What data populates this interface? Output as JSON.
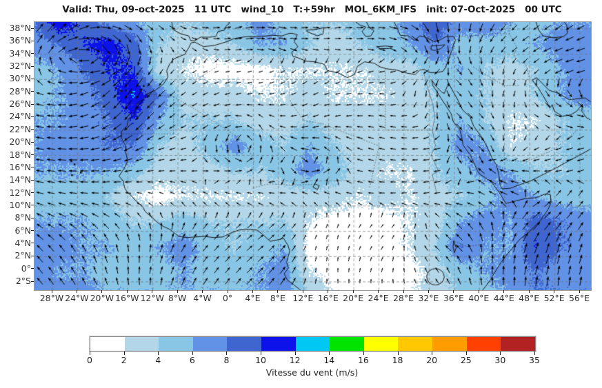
{
  "title": "Valid: Thu, 09-oct-2025   11 UTC   wind_10   T:+59hr   MOL_6KM_IFS   init: 07-Oct-2025   00 UTC",
  "axes": {
    "lat_labels": [
      "38°N",
      "36°N",
      "34°N",
      "32°N",
      "30°N",
      "28°N",
      "26°N",
      "24°N",
      "22°N",
      "20°N",
      "18°N",
      "16°N",
      "14°N",
      "12°N",
      "10°N",
      "8°N",
      "6°N",
      "4°N",
      "2°N",
      "0°",
      "2°S"
    ],
    "lon_labels": [
      "28°W",
      "24°W",
      "20°W",
      "16°W",
      "12°W",
      "8°W",
      "4°W",
      "0°",
      "4°E",
      "8°E",
      "12°E",
      "16°E",
      "20°E",
      "24°E",
      "28°E",
      "32°E",
      "36°E",
      "40°E",
      "44°E",
      "48°E",
      "52°E",
      "56°E"
    ]
  },
  "colorbar": {
    "label": "Vitesse du vent (m/s)",
    "ticks": [
      "0",
      "2",
      "4",
      "6",
      "8",
      "10",
      "12",
      "14",
      "16",
      "18",
      "20",
      "25",
      "30",
      "35"
    ],
    "colors": [
      "#ffffff",
      "#b3d7e8",
      "#89c6e6",
      "#6292e6",
      "#3f66d0",
      "#0d12ea",
      "#00c8f5",
      "#00e400",
      "#ffff00",
      "#ffc800",
      "#ff9c00",
      "#ff4000",
      "#b22222"
    ]
  },
  "chart_data": {
    "type": "heatmap",
    "subtype": "filled-contour wind speed field with quiver arrows over Africa",
    "variable": "wind_10",
    "model": "MOL_6KM_IFS",
    "valid": "Thu, 09-oct-2025 11 UTC",
    "lead": "T:+59hr",
    "init": "07-Oct-2025 00 UTC",
    "legend_label": "Vitesse du vent (m/s)",
    "levels": [
      0,
      2,
      4,
      6,
      8,
      10,
      12,
      14,
      16,
      18,
      20,
      25,
      30,
      35
    ],
    "lon_range": [
      -30.85,
      57.76
    ],
    "lat_range": [
      -3.31,
      39.09
    ],
    "grid_lons": [
      -31,
      -27,
      -23,
      -19,
      -15,
      -11,
      -7,
      -3,
      1,
      5,
      9,
      13,
      17,
      21,
      25,
      29,
      33,
      37,
      41,
      45,
      49,
      53,
      57
    ],
    "grid_lats": [
      39.5,
      35.5,
      31.5,
      27.5,
      23.5,
      19.5,
      15.5,
      11.5,
      7.5,
      3.5,
      -0.5,
      -4.5
    ],
    "speed_grid": [
      [
        8,
        12,
        9,
        7,
        6,
        5,
        4,
        5,
        5,
        7,
        5,
        4,
        4,
        5,
        5,
        7,
        10,
        7,
        8,
        6,
        5,
        6,
        6
      ],
      [
        7,
        8,
        10,
        11,
        9,
        4,
        3,
        3,
        4,
        6,
        6,
        4,
        3,
        4,
        5,
        6,
        8,
        5,
        5,
        5,
        6,
        7,
        7
      ],
      [
        5,
        6,
        8,
        10,
        10,
        3,
        2,
        1,
        1,
        1,
        2,
        2,
        2,
        2,
        3,
        3,
        5,
        6,
        4,
        3,
        4,
        6,
        7
      ],
      [
        5,
        6,
        7,
        9,
        12,
        8,
        3,
        3,
        3,
        2,
        2,
        3,
        2,
        2,
        2,
        3,
        4,
        5,
        4,
        3,
        4,
        6,
        7
      ],
      [
        6,
        6,
        7,
        8,
        10,
        6,
        4,
        4,
        4,
        3,
        3,
        4,
        3,
        3,
        3,
        3,
        4,
        6,
        4,
        2,
        2,
        4,
        5
      ],
      [
        6,
        7,
        7,
        8,
        8,
        4,
        3,
        5,
        7,
        5,
        4,
        6,
        4,
        3,
        3,
        3,
        4,
        7,
        6,
        2,
        3,
        4,
        5
      ],
      [
        6,
        6,
        6,
        6,
        5,
        3,
        3,
        3,
        4,
        4,
        5,
        7,
        5,
        3,
        2,
        2,
        4,
        5,
        7,
        6,
        4,
        4,
        5
      ],
      [
        5,
        5,
        5,
        4,
        2,
        1,
        2,
        2,
        2,
        2,
        3,
        3,
        3,
        2,
        3,
        2,
        3,
        4,
        5,
        7,
        6,
        5,
        5
      ],
      [
        6,
        6,
        6,
        5,
        4,
        4,
        5,
        4,
        4,
        4,
        4,
        2,
        1,
        1,
        1,
        2,
        3,
        6,
        7,
        6,
        9,
        8,
        7
      ],
      [
        7,
        7,
        6,
        6,
        5,
        6,
        7,
        5,
        4,
        5,
        6,
        1,
        1,
        1,
        1,
        2,
        4,
        8,
        6,
        6,
        10,
        8,
        7
      ],
      [
        7,
        6,
        6,
        5,
        5,
        5,
        6,
        5,
        5,
        6,
        7,
        2,
        1,
        1,
        1,
        1,
        3,
        5,
        6,
        7,
        8,
        7,
        7
      ],
      [
        8,
        7,
        7,
        6,
        6,
        6,
        6,
        6,
        6,
        6,
        7,
        4,
        2,
        1,
        1,
        2,
        3,
        4,
        5,
        6,
        8,
        8,
        8
      ]
    ],
    "dir_grid_compass_toward": [
      [
        45,
        35,
        60,
        90,
        110,
        120,
        110,
        90,
        70,
        90,
        100,
        90,
        80,
        90,
        100,
        110,
        170,
        180,
        200,
        220,
        230,
        230,
        240
      ],
      [
        20,
        60,
        90,
        130,
        160,
        150,
        120,
        100,
        80,
        90,
        100,
        90,
        90,
        90,
        100,
        120,
        160,
        190,
        210,
        230,
        240,
        250,
        250
      ],
      [
        0,
        290,
        270,
        250,
        220,
        210,
        230,
        250,
        260,
        250,
        240,
        230,
        240,
        250,
        260,
        250,
        230,
        135,
        160,
        200,
        230,
        250,
        260
      ],
      [
        290,
        270,
        250,
        225,
        210,
        225,
        235,
        245,
        255,
        265,
        255,
        245,
        255,
        265,
        275,
        190,
        180,
        135,
        170,
        200,
        150,
        135,
        160
      ],
      [
        280,
        270,
        255,
        235,
        220,
        230,
        240,
        250,
        270,
        315,
        270,
        250,
        260,
        270,
        280,
        270,
        180,
        135,
        135,
        180,
        120,
        100,
        90
      ],
      [
        280,
        275,
        265,
        250,
        240,
        250,
        255,
        180,
        180,
        0,
        315,
        270,
        315,
        290,
        280,
        270,
        260,
        135,
        135,
        200,
        240,
        250,
        260
      ],
      [
        280,
        275,
        270,
        265,
        260,
        265,
        270,
        90,
        90,
        45,
        160,
        90,
        45,
        280,
        275,
        270,
        265,
        150,
        315,
        280,
        270,
        260,
        250
      ],
      [
        285,
        280,
        275,
        270,
        280,
        290,
        300,
        290,
        280,
        270,
        280,
        290,
        280,
        275,
        270,
        265,
        260,
        270,
        300,
        290,
        60,
        45,
        40
      ],
      [
        300,
        300,
        305,
        310,
        330,
        350,
        20,
        40,
        45,
        50,
        45,
        30,
        20,
        30,
        40,
        30,
        330,
        315,
        330,
        40,
        45,
        40,
        35
      ],
      [
        315,
        320,
        330,
        340,
        355,
        15,
        30,
        40,
        45,
        50,
        40,
        20,
        10,
        20,
        30,
        350,
        315,
        315,
        0,
        10,
        20,
        15,
        20
      ],
      [
        320,
        325,
        335,
        345,
        0,
        15,
        25,
        35,
        40,
        45,
        35,
        15,
        0,
        10,
        15,
        345,
        330,
        340,
        0,
        5,
        15,
        10,
        15
      ],
      [
        315,
        320,
        325,
        335,
        345,
        355,
        20,
        30,
        35,
        40,
        30,
        10,
        355,
        350,
        340,
        330,
        320,
        330,
        350,
        355,
        0,
        0,
        5
      ]
    ]
  }
}
